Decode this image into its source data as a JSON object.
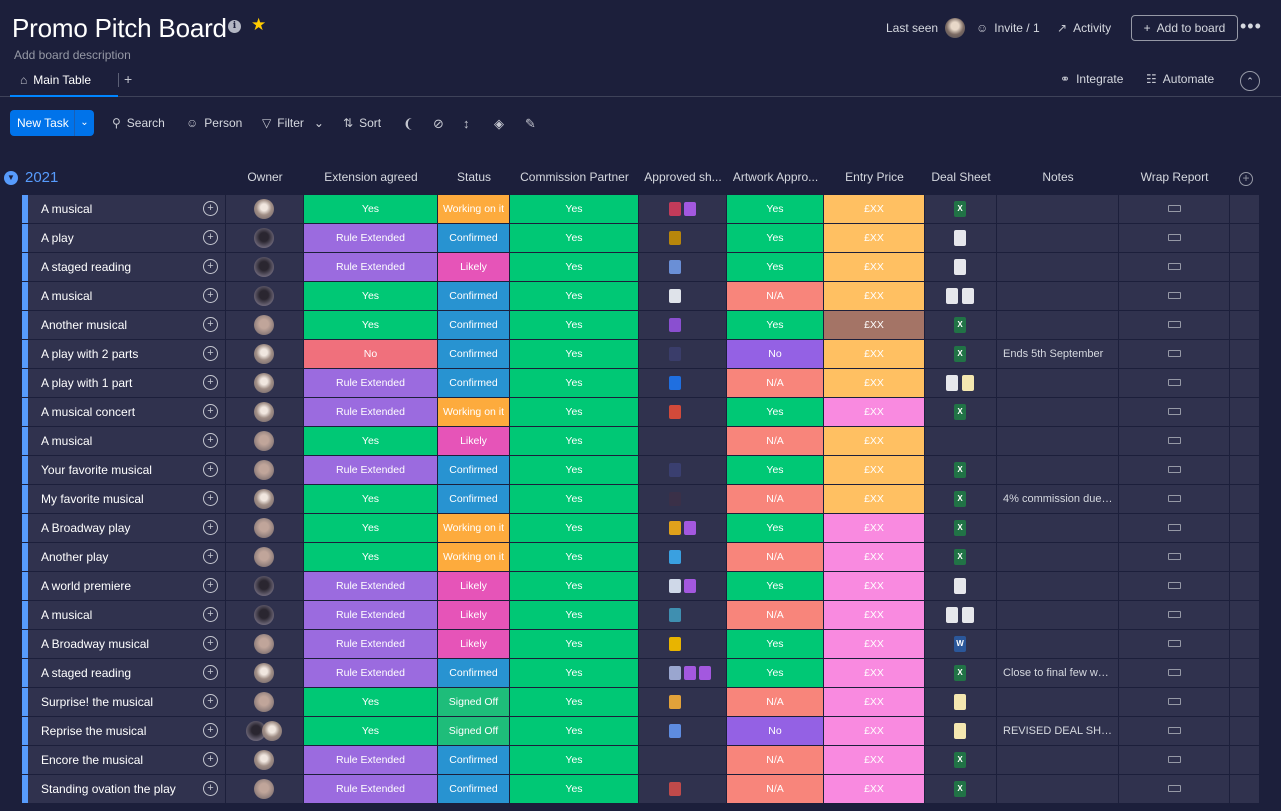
{
  "board": {
    "title": "Promo Pitch Board",
    "description": "Add board description",
    "last_seen": "Last seen",
    "invite": "Invite / 1",
    "activity": "Activity",
    "add_to_board": "Add to board"
  },
  "views": {
    "main_tab": "Main Table",
    "add": "+",
    "integrate": "Integrate",
    "automate": "Automate"
  },
  "toolbar": {
    "new_task": "New Task",
    "search": "Search",
    "person": "Person",
    "filter": "Filter",
    "sort": "Sort"
  },
  "group": {
    "title": "2021",
    "color": "#579bfc",
    "columns": [
      "Owner",
      "Extension agreed",
      "Status",
      "Commission Partner",
      "Approved sh...",
      "Artwork Appro...",
      "Entry Price",
      "Deal Sheet",
      "Notes",
      "Wrap Report"
    ]
  },
  "colors": {
    "done_green": "#00c875",
    "purple": "#a25ddc",
    "working_orange": "#fdab3d",
    "confirmed_blue": "#0086c0",
    "likely_pink": "#ff5ac4",
    "na_salmon": "#ff7575",
    "price_orange": "#ffc062",
    "price_pink": "#f98ae0",
    "price_brown": "#a47466"
  },
  "rows": [
    {
      "name": "A musical",
      "ext": "Yes",
      "status": "Working on it",
      "comm": "Yes",
      "art": "Yes",
      "price": "£XX",
      "notes": ""
    },
    {
      "name": "A play",
      "ext": "Rule Extended",
      "status": "Confirmed",
      "comm": "Yes",
      "art": "Yes",
      "price": "£XX",
      "notes": ""
    },
    {
      "name": "A staged reading",
      "ext": "Rule Extended",
      "status": "Likely",
      "comm": "Yes",
      "art": "Yes",
      "price": "£XX",
      "notes": ""
    },
    {
      "name": "A musical",
      "ext": "Yes",
      "status": "Confirmed",
      "comm": "Yes",
      "art": "N/A",
      "price": "£XX",
      "notes": ""
    },
    {
      "name": "Another musical",
      "ext": "Yes",
      "status": "Confirmed",
      "comm": "Yes",
      "art": "Yes",
      "price": "£XX",
      "notes": ""
    },
    {
      "name": "A play with 2 parts",
      "ext": "No",
      "status": "Confirmed",
      "comm": "Yes",
      "art": "No",
      "price": "£XX",
      "notes": "Ends 5th September"
    },
    {
      "name": "A play with 1 part",
      "ext": "Rule Extended",
      "status": "Confirmed",
      "comm": "Yes",
      "art": "N/A",
      "price": "£XX",
      "notes": ""
    },
    {
      "name": "A musical concert",
      "ext": "Rule Extended",
      "status": "Working on it",
      "comm": "Yes",
      "art": "Yes",
      "price": "£XX",
      "notes": ""
    },
    {
      "name": "A musical",
      "ext": "Yes",
      "status": "Likely",
      "comm": "Yes",
      "art": "N/A",
      "price": "£XX",
      "notes": ""
    },
    {
      "name": "Your favorite musical",
      "ext": "Rule Extended",
      "status": "Confirmed",
      "comm": "Yes",
      "art": "Yes",
      "price": "£XX",
      "notes": ""
    },
    {
      "name": "My favorite musical",
      "ext": "Yes",
      "status": "Confirmed",
      "comm": "Yes",
      "art": "N/A",
      "price": "£XX",
      "notes": "4% commission due t..."
    },
    {
      "name": "A Broadway play",
      "ext": "Yes",
      "status": "Working on it",
      "comm": "Yes",
      "art": "Yes",
      "price": "£XX",
      "notes": ""
    },
    {
      "name": "Another play",
      "ext": "Yes",
      "status": "Working on it",
      "comm": "Yes",
      "art": "N/A",
      "price": "£XX",
      "notes": ""
    },
    {
      "name": "A world premiere",
      "ext": "Rule Extended",
      "status": "Likely",
      "comm": "Yes",
      "art": "Yes",
      "price": "£XX",
      "notes": ""
    },
    {
      "name": "A musical",
      "ext": "Rule Extended",
      "status": "Likely",
      "comm": "Yes",
      "art": "N/A",
      "price": "£XX",
      "notes": ""
    },
    {
      "name": "A Broadway musical",
      "ext": "Rule Extended",
      "status": "Likely",
      "comm": "Yes",
      "art": "Yes",
      "price": "£XX",
      "notes": ""
    },
    {
      "name": "A staged reading",
      "ext": "Rule Extended",
      "status": "Confirmed",
      "comm": "Yes",
      "art": "Yes",
      "price": "£XX",
      "notes": "Close to final few we..."
    },
    {
      "name": "Surprise! the musical",
      "ext": "Yes",
      "status": "Signed Off",
      "comm": "Yes",
      "art": "N/A",
      "price": "£XX",
      "notes": ""
    },
    {
      "name": "Reprise the musical",
      "ext": "Yes",
      "status": "Signed Off",
      "comm": "Yes",
      "art": "No",
      "price": "£XX",
      "notes": "REVISED DEAL SHEE..."
    },
    {
      "name": "Encore the musical",
      "ext": "Rule Extended",
      "status": "Confirmed",
      "comm": "Yes",
      "art": "N/A",
      "price": "£XX",
      "notes": ""
    },
    {
      "name": "Standing ovation the play",
      "ext": "Rule Extended",
      "status": "Confirmed",
      "comm": "Yes",
      "art": "N/A",
      "price": "£XX",
      "notes": ""
    }
  ]
}
